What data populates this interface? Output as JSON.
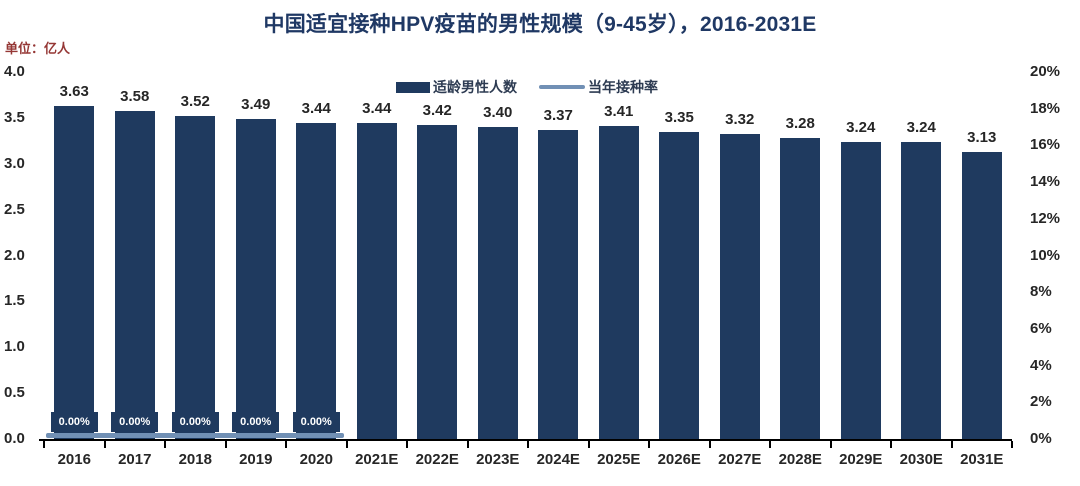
{
  "title": "中国适宜接种HPV疫苗的男性规模（9-45岁），2016-2031E",
  "unit_label": "单位：亿人",
  "colors": {
    "title": "#1f3864",
    "unit_label": "#953735",
    "bar": "#1f3a5f",
    "rate_line": "#7190b5",
    "rate_label_bg": "#1f3a5f",
    "rate_label_text": "#ffffff",
    "axis_text": "#262626",
    "axis_line": "#000000"
  },
  "chart_data": {
    "type": "bar",
    "title": "中国适宜接种HPV疫苗的男性规模（9-45岁），2016-2031E",
    "categories": [
      "2016",
      "2017",
      "2018",
      "2019",
      "2020",
      "2021E",
      "2022E",
      "2023E",
      "2024E",
      "2025E",
      "2026E",
      "2027E",
      "2028E",
      "2029E",
      "2030E",
      "2031E"
    ],
    "series": [
      {
        "name": "适龄男性人数",
        "type": "bar",
        "axis": "left",
        "color": "#1f3a5f",
        "values": [
          3.63,
          3.58,
          3.52,
          3.49,
          3.44,
          3.44,
          3.42,
          3.4,
          3.37,
          3.41,
          3.35,
          3.32,
          3.28,
          3.24,
          3.24,
          3.13
        ],
        "value_labels": [
          "3.63",
          "3.58",
          "3.52",
          "3.49",
          "3.44",
          "3.44",
          "3.42",
          "3.40",
          "3.37",
          "3.41",
          "3.35",
          "3.32",
          "3.28",
          "3.24",
          "3.24",
          "3.13"
        ]
      },
      {
        "name": "当年接种率",
        "type": "line",
        "axis": "right",
        "color": "#7190b5",
        "values": [
          0,
          0,
          0,
          0,
          0,
          null,
          null,
          null,
          null,
          null,
          null,
          null,
          null,
          null,
          null,
          null
        ],
        "value_labels": [
          "0.00%",
          "0.00%",
          "0.00%",
          "0.00%",
          "0.00%",
          null,
          null,
          null,
          null,
          null,
          null,
          null,
          null,
          null,
          null,
          null
        ]
      }
    ],
    "left_axis": {
      "label": "单位：亿人",
      "min": 0,
      "max": 4.0,
      "ticks": [
        "4.0",
        "3.5",
        "3.0",
        "2.5",
        "2.0",
        "1.5",
        "1.0",
        "0.5",
        "0.0"
      ]
    },
    "right_axis": {
      "min": 0,
      "max": 0.2,
      "ticks": [
        "20%",
        "18%",
        "16%",
        "14%",
        "12%",
        "10%",
        "8%",
        "6%",
        "4%",
        "2%",
        "0%"
      ]
    },
    "grid": false,
    "legend_position": "top-center-inside"
  }
}
